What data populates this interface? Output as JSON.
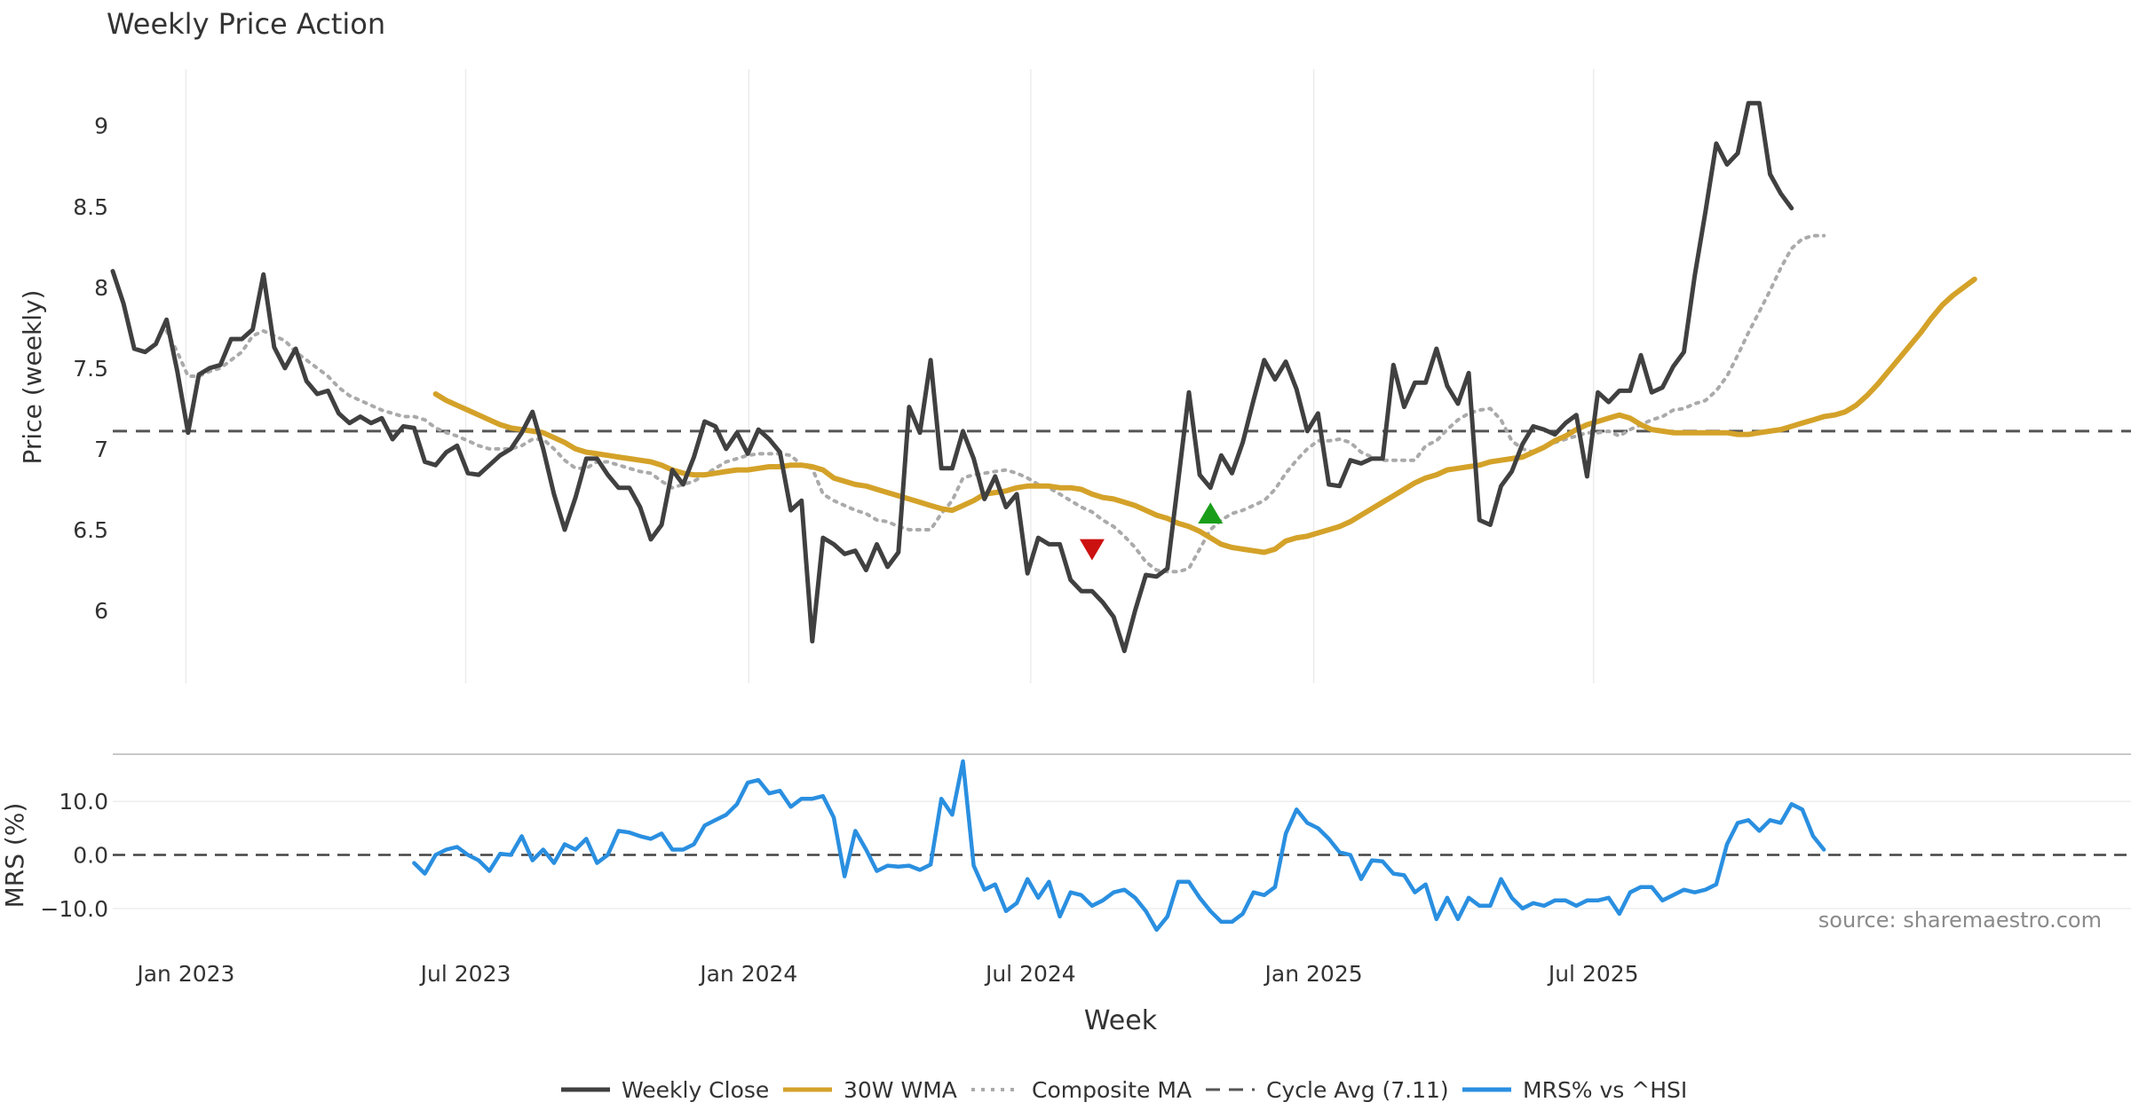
{
  "chart_data": {
    "type": "line",
    "title": "Weekly Price Action",
    "source": "source: sharemaestro.com",
    "xlabel": "Week",
    "x_ticks": [
      "Jan 2023",
      "Jul 2023",
      "Jan 2024",
      "Jul 2024",
      "Jan 2025",
      "Jul 2025"
    ],
    "price_panel": {
      "ylabel": "Price (weekly)",
      "ylim": [
        5.55,
        9.35
      ],
      "y_ticks": [
        "6",
        "6.5",
        "7",
        "7.5",
        "8",
        "8.5",
        "9"
      ],
      "cycle_avg": 7.11,
      "series": [
        {
          "name": "Weekly Close",
          "color": "#404040",
          "values": [
            8.1,
            7.9,
            7.62,
            7.6,
            7.65,
            7.8,
            7.48,
            7.1,
            7.46,
            7.5,
            7.52,
            7.68,
            7.68,
            7.74,
            8.08,
            7.63,
            7.5,
            7.62,
            7.42,
            7.34,
            7.36,
            7.22,
            7.16,
            7.2,
            7.16,
            7.19,
            7.06,
            7.14,
            7.13,
            6.92,
            6.9,
            6.98,
            7.02,
            6.85,
            6.84,
            6.9,
            6.96,
            7.0,
            7.1,
            7.23,
            7.0,
            6.72,
            6.5,
            6.7,
            6.94,
            6.94,
            6.84,
            6.76,
            6.76,
            6.64,
            6.44,
            6.53,
            6.87,
            6.78,
            6.95,
            7.17,
            7.14,
            7.0,
            7.1,
            6.97,
            7.12,
            7.06,
            6.98,
            6.62,
            6.68,
            5.81,
            6.45,
            6.41,
            6.35,
            6.37,
            6.25,
            6.41,
            6.27,
            6.36,
            7.26,
            7.1,
            7.55,
            6.88,
            6.88,
            7.11,
            6.94,
            6.69,
            6.83,
            6.64,
            6.72,
            6.23,
            6.45,
            6.41,
            6.41,
            6.19,
            6.12,
            6.12,
            6.05,
            5.96,
            5.75,
            6.0,
            6.22,
            6.21,
            6.26,
            6.8,
            7.35,
            6.84,
            6.76,
            6.96,
            6.85,
            7.04,
            7.3,
            7.55,
            7.43,
            7.54,
            7.37,
            7.11,
            7.22,
            6.78,
            6.77,
            6.93,
            6.91,
            6.94,
            6.94,
            7.52,
            7.26,
            7.41,
            7.41,
            7.62,
            7.39,
            7.28,
            7.47,
            6.56,
            6.53,
            6.77,
            6.86,
            7.03,
            7.14,
            7.12,
            7.09,
            7.16,
            7.21,
            6.83,
            7.35,
            7.29,
            7.36,
            7.36,
            7.58,
            7.35,
            7.38,
            7.51,
            7.6,
            8.07,
            8.47,
            8.89,
            8.76,
            8.83,
            9.14,
            9.14,
            8.7,
            8.58,
            8.49
          ]
        },
        {
          "name": "30W WMA",
          "color": "#d4a229",
          "start_index": 30,
          "values": [
            7.34,
            7.3,
            7.27,
            7.24,
            7.21,
            7.18,
            7.15,
            7.13,
            7.12,
            7.11,
            7.1,
            7.07,
            7.04,
            7.0,
            6.98,
            6.97,
            6.96,
            6.95,
            6.94,
            6.93,
            6.92,
            6.9,
            6.87,
            6.85,
            6.84,
            6.84,
            6.85,
            6.86,
            6.87,
            6.87,
            6.88,
            6.89,
            6.89,
            6.9,
            6.9,
            6.89,
            6.87,
            6.82,
            6.8,
            6.78,
            6.77,
            6.75,
            6.73,
            6.71,
            6.69,
            6.67,
            6.65,
            6.63,
            6.62,
            6.65,
            6.68,
            6.72,
            6.73,
            6.74,
            6.76,
            6.77,
            6.77,
            6.77,
            6.76,
            6.76,
            6.75,
            6.72,
            6.7,
            6.69,
            6.67,
            6.65,
            6.62,
            6.59,
            6.57,
            6.54,
            6.52,
            6.49,
            6.45,
            6.41,
            6.39,
            6.38,
            6.37,
            6.36,
            6.38,
            6.43,
            6.45,
            6.46,
            6.48,
            6.5,
            6.52,
            6.55,
            6.59,
            6.63,
            6.67,
            6.71,
            6.75,
            6.79,
            6.82,
            6.84,
            6.87,
            6.88,
            6.89,
            6.9,
            6.92,
            6.93,
            6.94,
            6.95,
            6.98,
            7.01,
            7.05,
            7.08,
            7.12,
            7.15,
            7.17,
            7.19,
            7.21,
            7.19,
            7.15,
            7.12,
            7.11,
            7.1,
            7.1,
            7.1,
            7.1,
            7.1,
            7.1,
            7.09,
            7.09,
            7.1,
            7.11,
            7.12,
            7.14,
            7.16,
            7.18,
            7.2,
            7.21,
            7.23,
            7.27,
            7.33,
            7.4,
            7.48,
            7.56,
            7.64,
            7.72,
            7.81,
            7.89,
            7.95,
            8.0,
            8.05
          ]
        },
        {
          "name": "Composite MA",
          "color": "#aaaaaa",
          "start_index": 5,
          "values": [
            7.73,
            7.6,
            7.45,
            7.45,
            7.48,
            7.5,
            7.55,
            7.6,
            7.7,
            7.73,
            7.7,
            7.67,
            7.6,
            7.55,
            7.5,
            7.45,
            7.38,
            7.33,
            7.3,
            7.27,
            7.24,
            7.22,
            7.2,
            7.2,
            7.18,
            7.13,
            7.1,
            7.08,
            7.05,
            7.02,
            7.0,
            7.0,
            7.0,
            7.02,
            7.06,
            7.06,
            7.0,
            6.93,
            6.88,
            6.88,
            6.92,
            6.92,
            6.9,
            6.88,
            6.86,
            6.85,
            6.8,
            6.76,
            6.78,
            6.8,
            6.84,
            6.88,
            6.92,
            6.94,
            6.96,
            6.97,
            6.97,
            6.97,
            6.96,
            6.9,
            6.88,
            6.72,
            6.68,
            6.65,
            6.62,
            6.6,
            6.56,
            6.55,
            6.52,
            6.5,
            6.5,
            6.5,
            6.6,
            6.68,
            6.82,
            6.84,
            6.85,
            6.86,
            6.87,
            6.85,
            6.82,
            6.78,
            6.76,
            6.72,
            6.68,
            6.64,
            6.61,
            6.56,
            6.52,
            6.46,
            6.39,
            6.3,
            6.25,
            6.24,
            6.24,
            6.26,
            6.38,
            6.5,
            6.56,
            6.6,
            6.62,
            6.65,
            6.68,
            6.75,
            6.85,
            6.93,
            7.0,
            7.05,
            7.05,
            7.06,
            7.04,
            6.98,
            6.95,
            6.93,
            6.93,
            6.93,
            6.93,
            7.02,
            7.05,
            7.12,
            7.18,
            7.22,
            7.24,
            7.25,
            7.18,
            7.05,
            7.0,
            6.98,
            7.01,
            7.04,
            7.06,
            7.08,
            7.1,
            7.1,
            7.11,
            7.08,
            7.12,
            7.15,
            7.18,
            7.2,
            7.24,
            7.25,
            7.28,
            7.3,
            7.36,
            7.45,
            7.58,
            7.72,
            7.85,
            7.98,
            8.12,
            8.24,
            8.3,
            8.32,
            8.32
          ]
        }
      ],
      "markers": [
        {
          "type": "sell",
          "symbol": "triangle-down",
          "color": "#cc1111",
          "index": 91,
          "value": 6.38
        },
        {
          "type": "buy",
          "symbol": "triangle-up",
          "color": "#1a9e1a",
          "index": 102,
          "value": 6.6
        }
      ]
    },
    "mrs_panel": {
      "ylabel": "MRS (%)",
      "ylim": [
        -16,
        18
      ],
      "y_ticks": [
        "10.0",
        "0.0",
        "−10.0"
      ],
      "zero_line": 0,
      "series": [
        {
          "name": "MRS% vs ^HSI",
          "color": "#2a8fe0",
          "start_index": 28,
          "values": [
            -1.5,
            -3.5,
            0,
            1,
            1.5,
            0,
            -1,
            -3,
            0.2,
            0,
            3.5,
            -1,
            1,
            -1.5,
            2,
            1,
            3,
            -1.5,
            0,
            4.5,
            4.2,
            3.5,
            3,
            4,
            1,
            1,
            2,
            5.5,
            6.5,
            7.5,
            9.5,
            13.5,
            14,
            11.5,
            12,
            9,
            10.5,
            10.5,
            11,
            7,
            -4,
            4.5,
            1,
            -3,
            -2,
            -2.2,
            -2,
            -2.8,
            -1.8,
            10.5,
            7.5,
            17.5,
            -2,
            -6.5,
            -5.5,
            -10.5,
            -9,
            -4.5,
            -8,
            -5,
            -11.5,
            -7,
            -7.5,
            -9.5,
            -8.5,
            -7,
            -6.5,
            -8,
            -10.5,
            -14,
            -11.5,
            -5,
            -5,
            -8,
            -10.5,
            -12.5,
            -12.5,
            -11,
            -7,
            -7.5,
            -6,
            4,
            8.5,
            6,
            5,
            3,
            0.5,
            0,
            -4.5,
            -1,
            -1.2,
            -3.5,
            -3.8,
            -7,
            -5.5,
            -12,
            -8,
            -12,
            -8,
            -9.5,
            -9.5,
            -4.5,
            -8,
            -10,
            -9,
            -9.5,
            -8.5,
            -8.5,
            -9.5,
            -8.5,
            -8.5,
            -8,
            -11,
            -7,
            -6,
            -6,
            -8.5,
            -7.5,
            -6.5,
            -7,
            -6.5,
            -5.5,
            2,
            6,
            6.5,
            4.5,
            6.5,
            6,
            9.5,
            8.5,
            3.5,
            1
          ]
        }
      ]
    },
    "legend": {
      "placement": "bottom-center",
      "entries": [
        {
          "label": "Weekly Close",
          "color": "#404040",
          "style": "solid"
        },
        {
          "label": "30W WMA",
          "color": "#d4a229",
          "style": "solid"
        },
        {
          "label": "Composite MA",
          "color": "#aaaaaa",
          "style": "dotted"
        },
        {
          "label": "Cycle Avg (7.11)",
          "color": "#555555",
          "style": "dashed"
        },
        {
          "label": "MRS% vs ^HSI",
          "color": "#2a8fe0",
          "style": "solid"
        }
      ]
    }
  }
}
